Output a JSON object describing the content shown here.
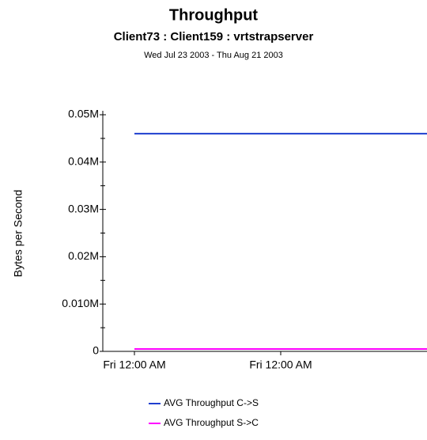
{
  "chart_data": {
    "type": "line",
    "title": "Throughput",
    "subtitle": "Client73 : Client159 : vrtstrapserver",
    "date_range": "Wed Jul 23 2003 - Thu Aug 21 2003",
    "y_label": "Bytes per Second",
    "categories": [
      "Fri 12:00 AM",
      "Fri 12:00 AM",
      null
    ],
    "series": [
      {
        "name": "AVG Throughput C->S",
        "color": "#1f3fcf",
        "values": [
          46000,
          46000,
          46000
        ]
      },
      {
        "name": "AVG Throughput S->C",
        "color": "#ff00ff",
        "values": [
          500,
          500,
          500
        ]
      }
    ],
    "ylim": [
      0,
      50000
    ],
    "yticks": [
      0,
      {
        "value": 10000,
        "label": "0.010M"
      },
      {
        "value": 20000,
        "label": "0.02M"
      },
      {
        "value": 30000,
        "label": "0.03M"
      },
      {
        "value": 40000,
        "label": "0.04M"
      },
      {
        "value": 50000,
        "label": "0.05M"
      }
    ],
    "grid": false
  }
}
